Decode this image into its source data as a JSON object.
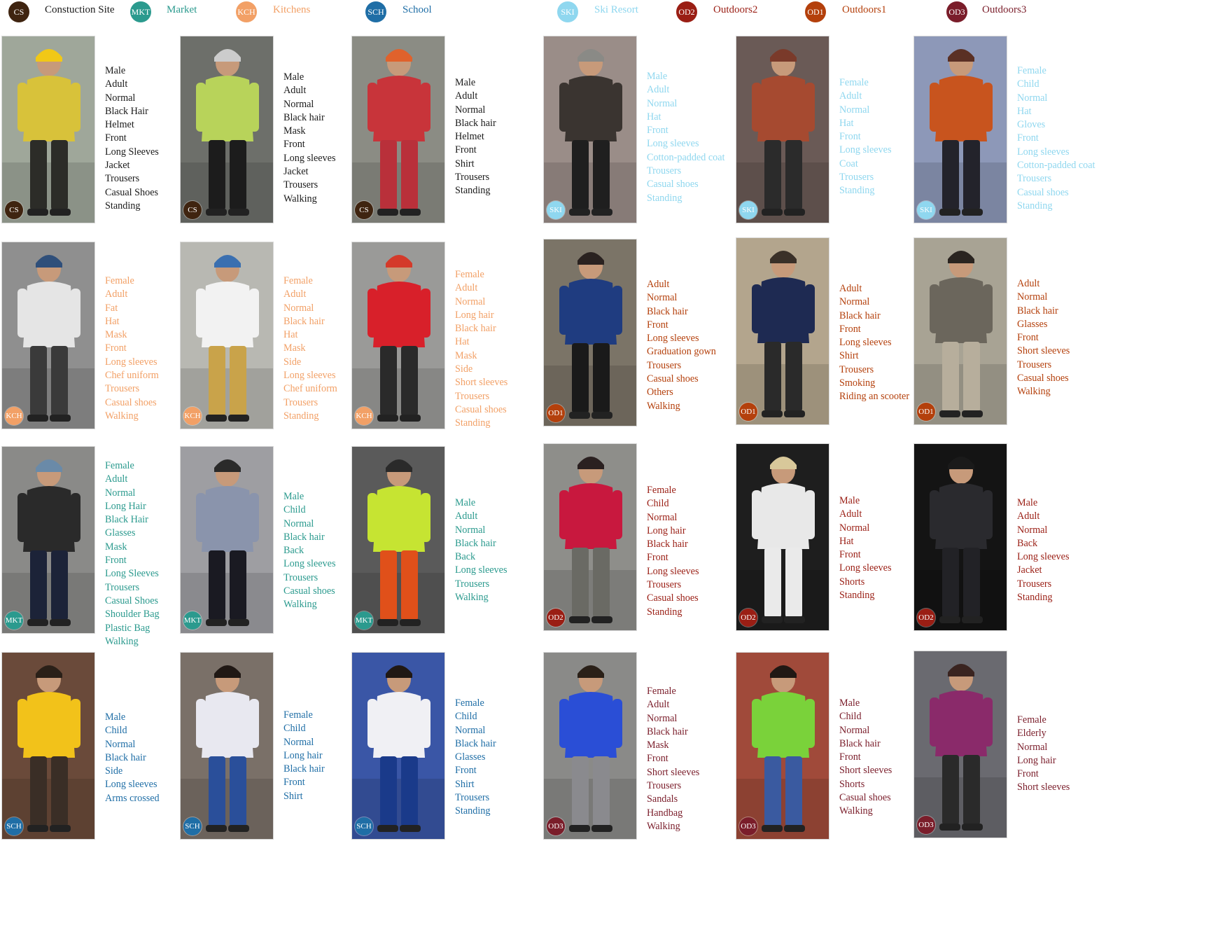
{
  "legend": [
    {
      "code": "CS",
      "label": "Constuction Site",
      "color": "#3f2410",
      "text_color": "#1a1a1a"
    },
    {
      "code": "MKT",
      "label": "Market",
      "color": "#2b9a8e",
      "text_color": "#2b9a8e"
    },
    {
      "code": "KCH",
      "label": "Kitchens",
      "color": "#f2a066",
      "text_color": "#f2a066"
    },
    {
      "code": "SCH",
      "label": "School",
      "color": "#1f6ea6",
      "text_color": "#1f6ea6"
    },
    {
      "code": "SKI",
      "label": "Ski Resort",
      "color": "#8fd7ef",
      "text_color": "#8fd7ef"
    },
    {
      "code": "OD2",
      "label": "Outdoors2",
      "color": "#9a1e14",
      "text_color": "#9a1e14"
    },
    {
      "code": "OD1",
      "label": "Outdoors1",
      "color": "#b4400c",
      "text_color": "#b4400c"
    },
    {
      "code": "OD3",
      "label": "Outdoors3",
      "color": "#7a1d2a",
      "text_color": "#7a1d2a"
    }
  ],
  "samples": [
    {
      "code": "CS",
      "photo": {
        "bg": "#9fa79a",
        "body": "#d8c23a",
        "head": "#f1c817",
        "legs": "#2c2c28"
      },
      "attributes": [
        "Male",
        "Adult",
        "Normal",
        "Black Hair",
        "Helmet",
        "Front",
        "Long Sleeves",
        "Jacket",
        "Trousers",
        "Casual Shoes",
        "Standing"
      ]
    },
    {
      "code": "CS",
      "photo": {
        "bg": "#6d6f6a",
        "body": "#b8d35a",
        "head": "#cccccc",
        "legs": "#1c1c1c"
      },
      "attributes": [
        "Male",
        "Adult",
        "Normal",
        "Black hair",
        "Mask",
        "Front",
        "Long sleeves",
        "Jacket",
        "Trousers",
        "Walking"
      ]
    },
    {
      "code": "CS",
      "photo": {
        "bg": "#8b8c84",
        "body": "#c8343a",
        "head": "#e0622c",
        "legs": "#b9303a"
      },
      "attributes": [
        "Male",
        "Adult",
        "Normal",
        "Black hair",
        "Helmet",
        "Front",
        "Shirt",
        "Trousers",
        "Standing"
      ]
    },
    {
      "code": "SKI",
      "photo": {
        "bg": "#9a8d88",
        "body": "#3a3430",
        "head": "#8a8a86",
        "legs": "#1f1f1f"
      },
      "attributes": [
        "Male",
        "Adult",
        "Normal",
        "Hat",
        "Front",
        "Long sleeves",
        "Cotton-padded coat",
        "Trousers",
        "Casual shoes",
        "Standing"
      ]
    },
    {
      "code": "SKI",
      "photo": {
        "bg": "#6a5a56",
        "body": "#a64a30",
        "head": "#7a3a2a",
        "legs": "#2b2b2b"
      },
      "attributes": [
        "Female",
        "Adult",
        "Normal",
        "Hat",
        "Front",
        "Long sleeves",
        "Coat",
        "Trousers",
        "Standing"
      ]
    },
    {
      "code": "SKI",
      "photo": {
        "bg": "#8d98b8",
        "body": "#c8541e",
        "head": "#5a3024",
        "legs": "#23232b"
      },
      "attributes": [
        "Female",
        "Child",
        "Normal",
        "Hat",
        "Gloves",
        "Front",
        "Long sleeves",
        "Cotton-padded coat",
        "Trousers",
        "Casual shoes",
        "Standing"
      ]
    },
    {
      "code": "KCH",
      "photo": {
        "bg": "#8f8f8f",
        "body": "#e5e5e5",
        "head": "#2f4f7a",
        "legs": "#3a3a3a"
      },
      "attributes": [
        "Female",
        "Adult",
        "Fat",
        "Hat",
        "Mask",
        "Front",
        "Long sleeves",
        "Chef uniform",
        "Trousers",
        "Casual shoes",
        "Walking"
      ]
    },
    {
      "code": "KCH",
      "photo": {
        "bg": "#b8b8b2",
        "body": "#f2f2f2",
        "head": "#3a6fb0",
        "legs": "#c9a34a"
      },
      "attributes": [
        "Female",
        "Adult",
        "Normal",
        "Black hair",
        "Hat",
        "Mask",
        "Side",
        "Long sleeves",
        "Chef uniform",
        "Trousers",
        "Standing"
      ]
    },
    {
      "code": "KCH",
      "photo": {
        "bg": "#9a9a98",
        "body": "#d8202a",
        "head": "#d43a2a",
        "legs": "#2a2a2a"
      },
      "attributes": [
        "Female",
        "Adult",
        "Normal",
        "Long hair",
        "Black hair",
        "Hat",
        "Mask",
        "Side",
        "Short sleeves",
        "Trousers",
        "Casual shoes",
        "Standing"
      ]
    },
    {
      "code": "OD1",
      "photo": {
        "bg": "#7b7467",
        "body": "#1f3c80",
        "head": "#2a2220",
        "legs": "#1a1a1a"
      },
      "attributes": [
        "Adult",
        "Normal",
        "Black hair",
        "Front",
        "Long sleeves",
        "Graduation gown",
        "Trousers",
        "Casual shoes",
        "Others",
        "Walking"
      ]
    },
    {
      "code": "OD1",
      "photo": {
        "bg": "#b3a58d",
        "body": "#1e2a52",
        "head": "#3a3028",
        "legs": "#2a2a2a"
      },
      "attributes": [
        "Adult",
        "Normal",
        "Black hair",
        "Front",
        "Long sleeves",
        "Shirt",
        "Trousers",
        "Smoking",
        "Riding an scooter"
      ]
    },
    {
      "code": "OD1",
      "photo": {
        "bg": "#a8a394",
        "body": "#6b665c",
        "head": "#2a2420",
        "legs": "#b7ae9c"
      },
      "attributes": [
        "Adult",
        "Normal",
        "Black hair",
        "Glasses",
        "Front",
        "Short sleeves",
        "Trousers",
        "Casual shoes",
        "Walking"
      ]
    },
    {
      "code": "MKT",
      "photo": {
        "bg": "#8a8a88",
        "body": "#2a2a2a",
        "head": "#6a8aa8",
        "legs": "#1c2338"
      },
      "attributes": [
        "Female",
        "Adult",
        "Normal",
        "Long Hair",
        "Black Hair",
        "Glasses",
        "Mask",
        "Front",
        "Long Sleeves",
        "Trousers",
        "Casual Shoes",
        "Shoulder Bag",
        "Plastic Bag",
        "Walking"
      ]
    },
    {
      "code": "MKT",
      "photo": {
        "bg": "#9e9ea2",
        "body": "#8a94ac",
        "head": "#2a2a2a",
        "legs": "#1a1a22"
      },
      "attributes": [
        "Male",
        "Child",
        "Normal",
        "Black hair",
        "Back",
        "Long sleeves",
        "Trousers",
        "Casual shoes",
        "Walking"
      ]
    },
    {
      "code": "MKT",
      "photo": {
        "bg": "#5a5a5a",
        "body": "#c6e432",
        "head": "#2a2a2a",
        "legs": "#e0501a"
      },
      "attributes": [
        "Male",
        "Adult",
        "Normal",
        "Black hair",
        "Back",
        "Long sleeves",
        "Trousers",
        "Walking"
      ]
    },
    {
      "code": "OD2",
      "photo": {
        "bg": "#8e8e8a",
        "body": "#c8183e",
        "head": "#2a2020",
        "legs": "#6a6a64"
      },
      "attributes": [
        "Female",
        "Child",
        "Normal",
        "Long hair",
        "Black hair",
        "Front",
        "Long sleeves",
        "Trousers",
        "Casual shoes",
        "Standing"
      ]
    },
    {
      "code": "OD2",
      "photo": {
        "bg": "#1e1e1e",
        "body": "#e8e8e8",
        "head": "#d8c89a",
        "legs": "#eaeaea"
      },
      "attributes": [
        "Male",
        "Adult",
        "Normal",
        "Hat",
        "Front",
        "Long sleeves",
        "Shorts",
        "Standing"
      ]
    },
    {
      "code": "OD2",
      "photo": {
        "bg": "#141414",
        "body": "#2a2a2e",
        "head": "#1a1a1a",
        "legs": "#222226"
      },
      "attributes": [
        "Male",
        "Adult",
        "Normal",
        "Back",
        "Long sleeves",
        "Jacket",
        "Trousers",
        "Standing"
      ]
    },
    {
      "code": "SCH",
      "photo": {
        "bg": "#6a4a3a",
        "body": "#f2c21a",
        "head": "#2a2018",
        "legs": "#3a2e26"
      },
      "attributes": [
        "Male",
        "Child",
        "Normal",
        "Black hair",
        "Side",
        "Long sleeves",
        "Arms crossed"
      ]
    },
    {
      "code": "SCH",
      "photo": {
        "bg": "#7a7068",
        "body": "#e8e8f0",
        "head": "#201814",
        "legs": "#2a4f9a"
      },
      "attributes": [
        "Female",
        "Child",
        "Normal",
        "Long hair",
        "Black hair",
        "Front",
        "Shirt"
      ]
    },
    {
      "code": "SCH",
      "photo": {
        "bg": "#3a56a6",
        "body": "#f0f0f4",
        "head": "#201814",
        "legs": "#1a3a8a"
      },
      "attributes": [
        "Female",
        "Child",
        "Normal",
        "Black hair",
        "Glasses",
        "Front",
        "Shirt",
        "Trousers",
        "Standing"
      ]
    },
    {
      "code": "OD3",
      "photo": {
        "bg": "#8a8a88",
        "body": "#2a4ed6",
        "head": "#2a2018",
        "legs": "#8a8a8e"
      },
      "attributes": [
        "Female",
        "Adult",
        "Normal",
        "Black hair",
        "Mask",
        "Front",
        "Short sleeves",
        "Trousers",
        "Sandals",
        "Handbag",
        "Walking"
      ]
    },
    {
      "code": "OD3",
      "photo": {
        "bg": "#a04a3a",
        "body": "#7ad23a",
        "head": "#201814",
        "legs": "#3a5aa0"
      },
      "attributes": [
        "Male",
        "Child",
        "Normal",
        "Black hair",
        "Front",
        "Short sleeves",
        "Shorts",
        "Casual shoes",
        "Walking"
      ]
    },
    {
      "code": "OD3",
      "photo": {
        "bg": "#6a6a70",
        "body": "#8a2a6a",
        "head": "#3a2420",
        "legs": "#2a2a2a"
      },
      "attributes": [
        "Female",
        "Elderly",
        "Normal",
        "Long hair",
        "Front",
        "Short sleeves"
      ]
    }
  ]
}
